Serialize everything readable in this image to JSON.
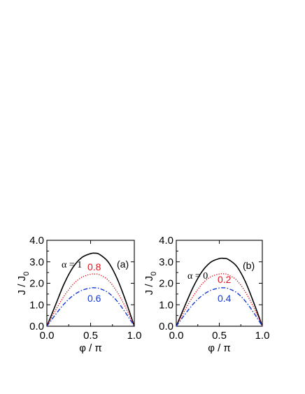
{
  "chart_data": [
    {
      "type": "line",
      "panel_label": "(a)",
      "annotation": "α = 1",
      "xlabel": "φ / π",
      "ylabel": "J / J",
      "ylabel_sub": "0",
      "xlim": [
        0.0,
        1.0
      ],
      "ylim": [
        0.0,
        4.0
      ],
      "xticks": [
        "0.0",
        "0.5",
        "1.0"
      ],
      "yticks": [
        "0.0",
        "1.0",
        "2.0",
        "3.0",
        "4.0"
      ],
      "x": [
        0.0,
        0.1,
        0.2,
        0.3,
        0.4,
        0.5,
        0.55,
        0.6,
        0.7,
        0.8,
        0.9,
        1.0
      ],
      "series": [
        {
          "label": "",
          "color": "#000000",
          "style": "solid",
          "values": [
            0.0,
            1.0,
            2.0,
            2.75,
            3.2,
            3.38,
            3.4,
            3.35,
            3.0,
            2.25,
            1.2,
            0.0
          ]
        },
        {
          "label": "0.8",
          "color": "#e0141e",
          "style": "dotted",
          "values": [
            0.0,
            0.75,
            1.42,
            1.95,
            2.28,
            2.42,
            2.43,
            2.4,
            2.15,
            1.62,
            0.88,
            0.0
          ]
        },
        {
          "label": "0.6",
          "color": "#1438d2",
          "style": "dashdot",
          "values": [
            0.0,
            0.55,
            1.05,
            1.43,
            1.67,
            1.78,
            1.79,
            1.76,
            1.57,
            1.18,
            0.63,
            0.0
          ]
        }
      ]
    },
    {
      "type": "line",
      "panel_label": "(b)",
      "annotation": "α = 0",
      "xlabel": "φ / π",
      "ylabel": "J / J",
      "ylabel_sub": "0",
      "xlim": [
        0.0,
        1.0
      ],
      "ylim": [
        0.0,
        4.0
      ],
      "xticks": [
        "0.0",
        "0.5",
        "1.0"
      ],
      "yticks": [
        "0.0",
        "1.0",
        "2.0",
        "3.0",
        "4.0"
      ],
      "x": [
        0.0,
        0.1,
        0.2,
        0.3,
        0.4,
        0.5,
        0.55,
        0.6,
        0.7,
        0.8,
        0.9,
        1.0
      ],
      "series": [
        {
          "label": "",
          "color": "#000000",
          "style": "solid",
          "values": [
            0.0,
            0.95,
            1.85,
            2.55,
            2.98,
            3.15,
            3.16,
            3.12,
            2.8,
            2.1,
            1.1,
            0.0
          ]
        },
        {
          "label": "0.2",
          "color": "#e0141e",
          "style": "dotted",
          "values": [
            0.0,
            0.75,
            1.42,
            1.97,
            2.3,
            2.43,
            2.44,
            2.4,
            2.15,
            1.62,
            0.87,
            0.0
          ]
        },
        {
          "label": "0.4",
          "color": "#1438d2",
          "style": "dashdot",
          "values": [
            0.0,
            0.55,
            1.05,
            1.43,
            1.67,
            1.78,
            1.79,
            1.76,
            1.57,
            1.18,
            0.63,
            0.0
          ]
        }
      ]
    }
  ]
}
